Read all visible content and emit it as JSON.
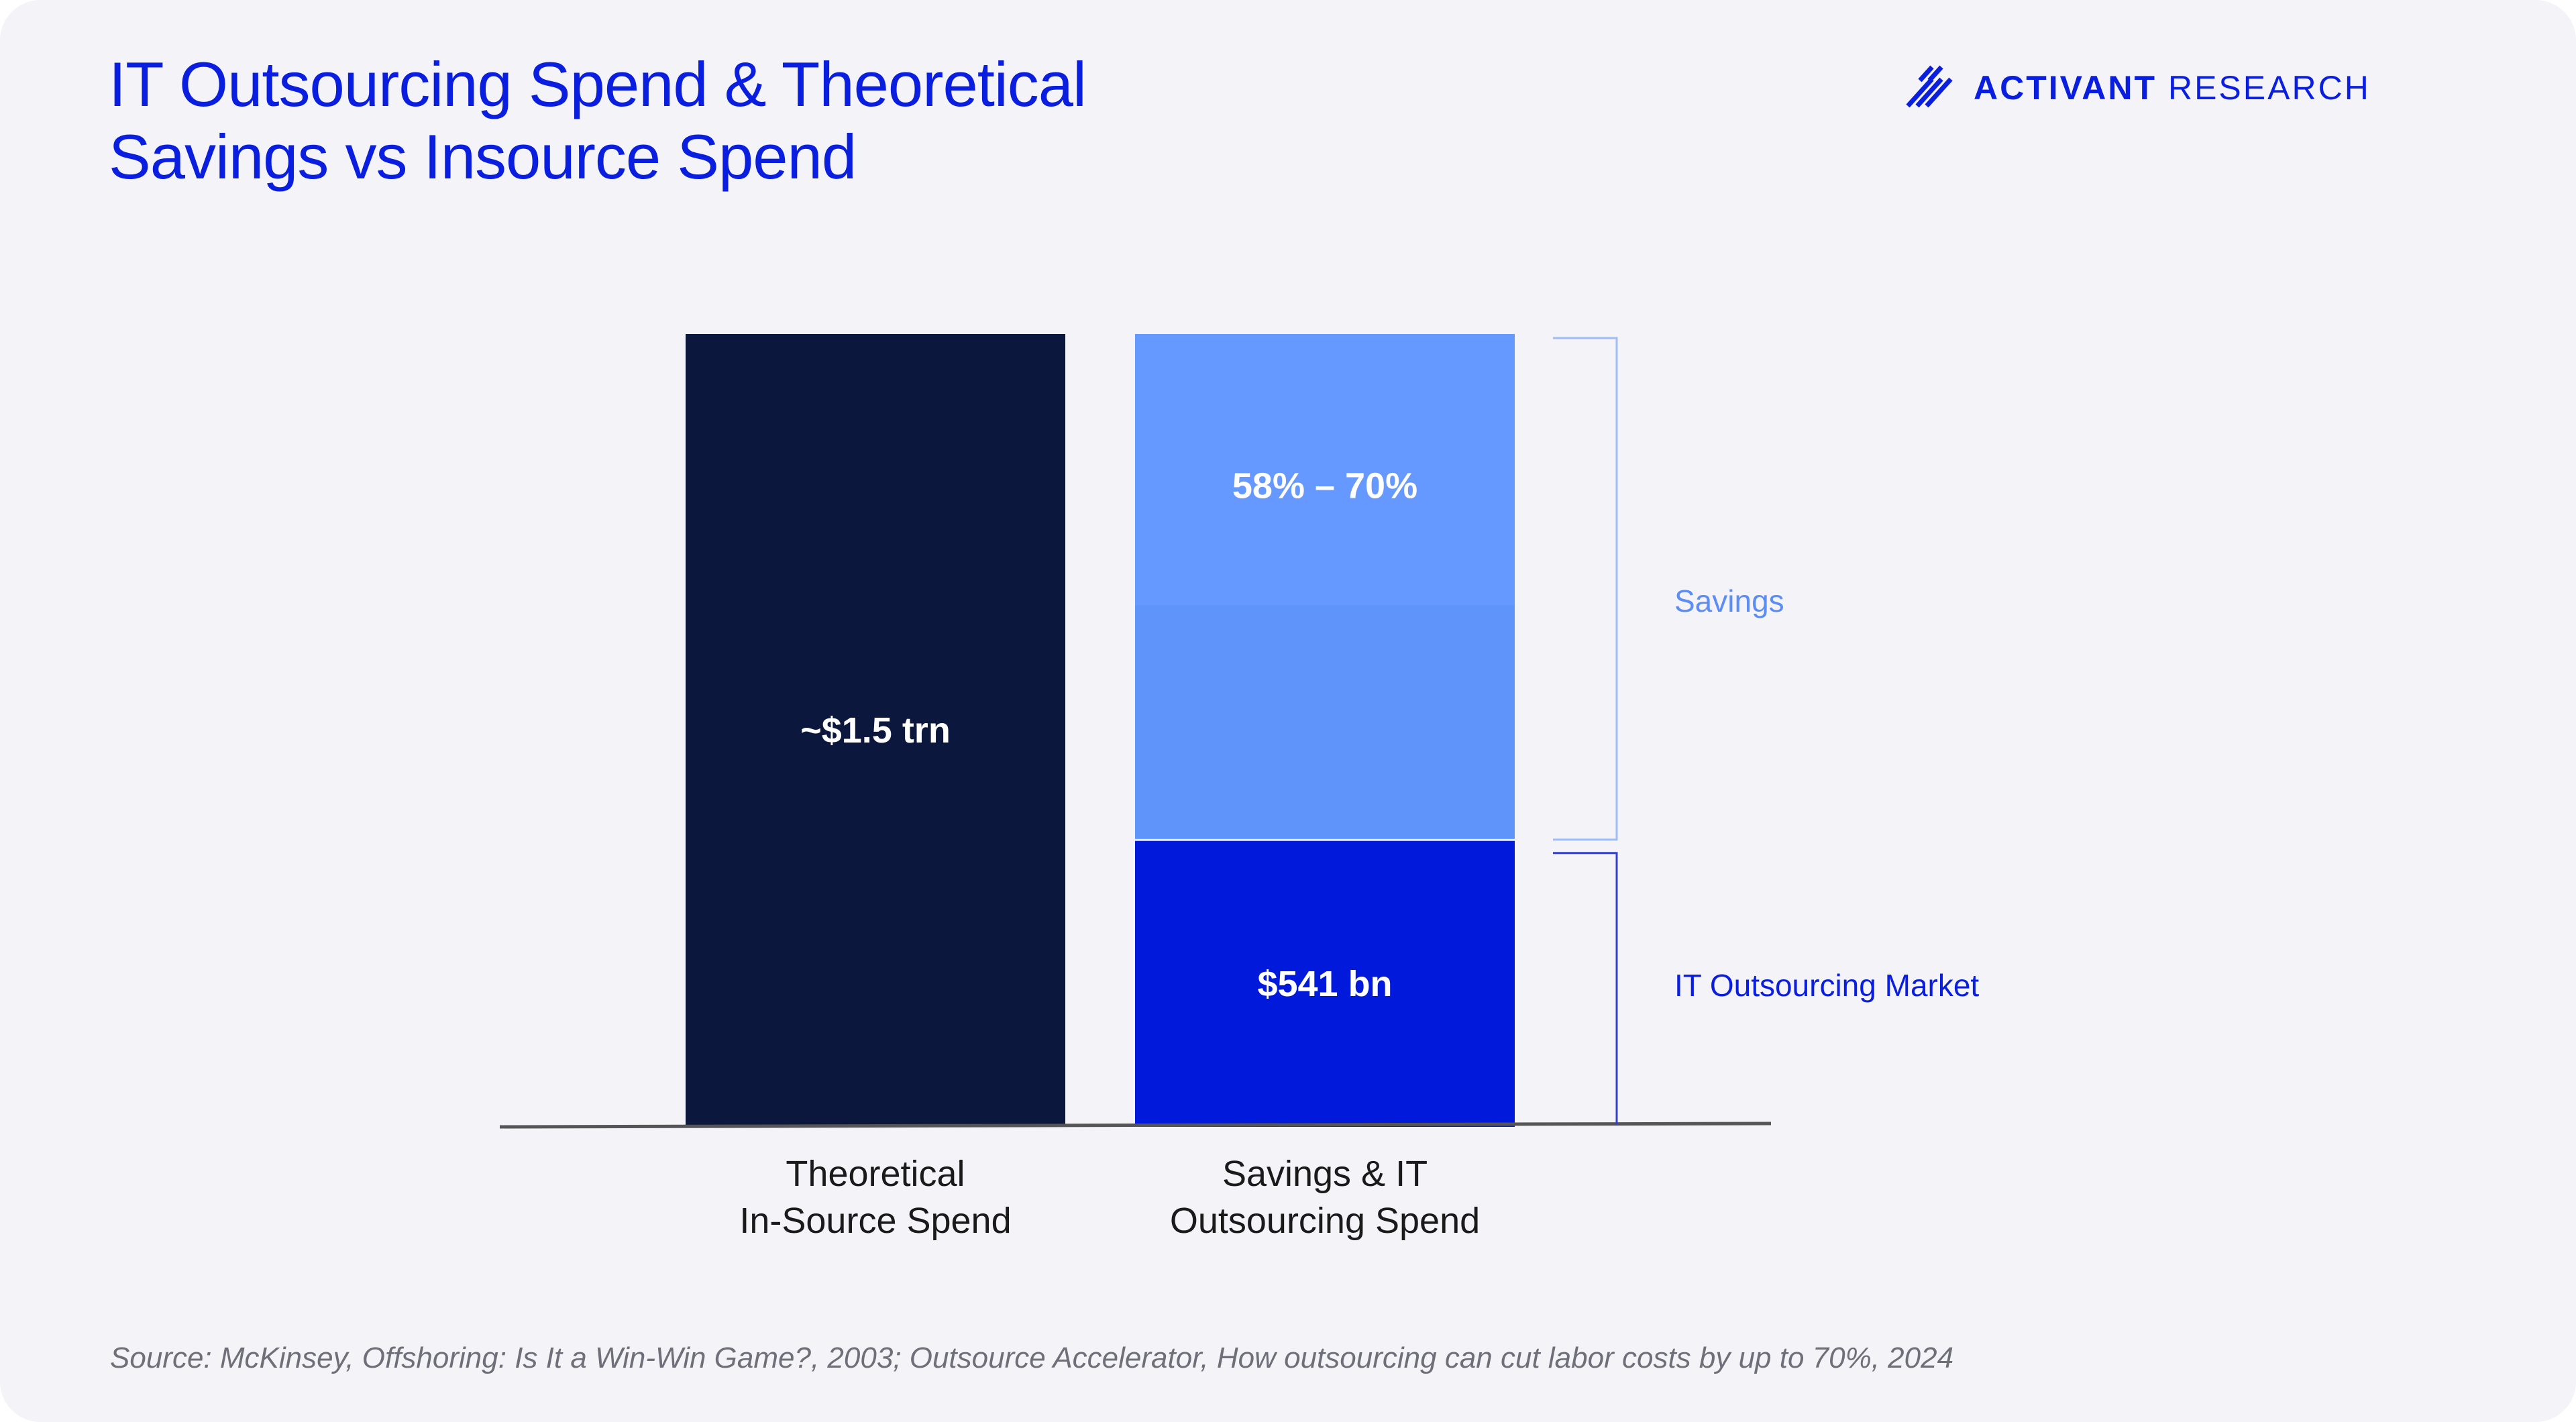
{
  "title": {
    "line1": "IT Outsourcing Spend & Theoretical",
    "line2": "Savings vs Insource Spend"
  },
  "logo": {
    "icon": "activant-chevrons-icon",
    "name_strong": "ACTIVANT",
    "name_light": "RESEARCH"
  },
  "colors": {
    "title": "#0a1ee0",
    "insource_bar": "#0b173d",
    "savings_bar": "#6699ff",
    "outsourcing_bar": "#0019db",
    "savings_label": "#5b8df5",
    "outsourcing_label": "#0a1ee0",
    "axis": "#555555"
  },
  "chart_data": {
    "type": "bar",
    "stacked": true,
    "categories": [
      "Theoretical\nIn-Source Spend",
      "Savings & IT\nOutsourcing Spend"
    ],
    "category_lines": [
      [
        "Theoretical",
        "In-Source Spend"
      ],
      [
        "Savings & IT",
        "Outsourcing Spend"
      ]
    ],
    "series": [
      {
        "name": "Theoretical In-Source Spend",
        "values": [
          1.5,
          null
        ],
        "label": "~$1.5 trn"
      },
      {
        "name": "IT Outsourcing Market",
        "values": [
          null,
          0.541
        ],
        "label": "$541 bn"
      },
      {
        "name": "Savings",
        "values": [
          null,
          0.959
        ],
        "label": "58% – 70%"
      }
    ],
    "units": "$ trillion",
    "ylim": [
      0,
      1.5
    ],
    "legend_position": "right",
    "grid": false,
    "annotations": {
      "savings_bracket": "Savings",
      "outsourcing_bracket": "IT Outsourcing Market"
    }
  },
  "footer": {
    "source": "Source: McKinsey, Offshoring: Is It a Win-Win Game?, 2003; Outsource Accelerator, How outsourcing can cut labor costs by up to 70%, 2024"
  }
}
